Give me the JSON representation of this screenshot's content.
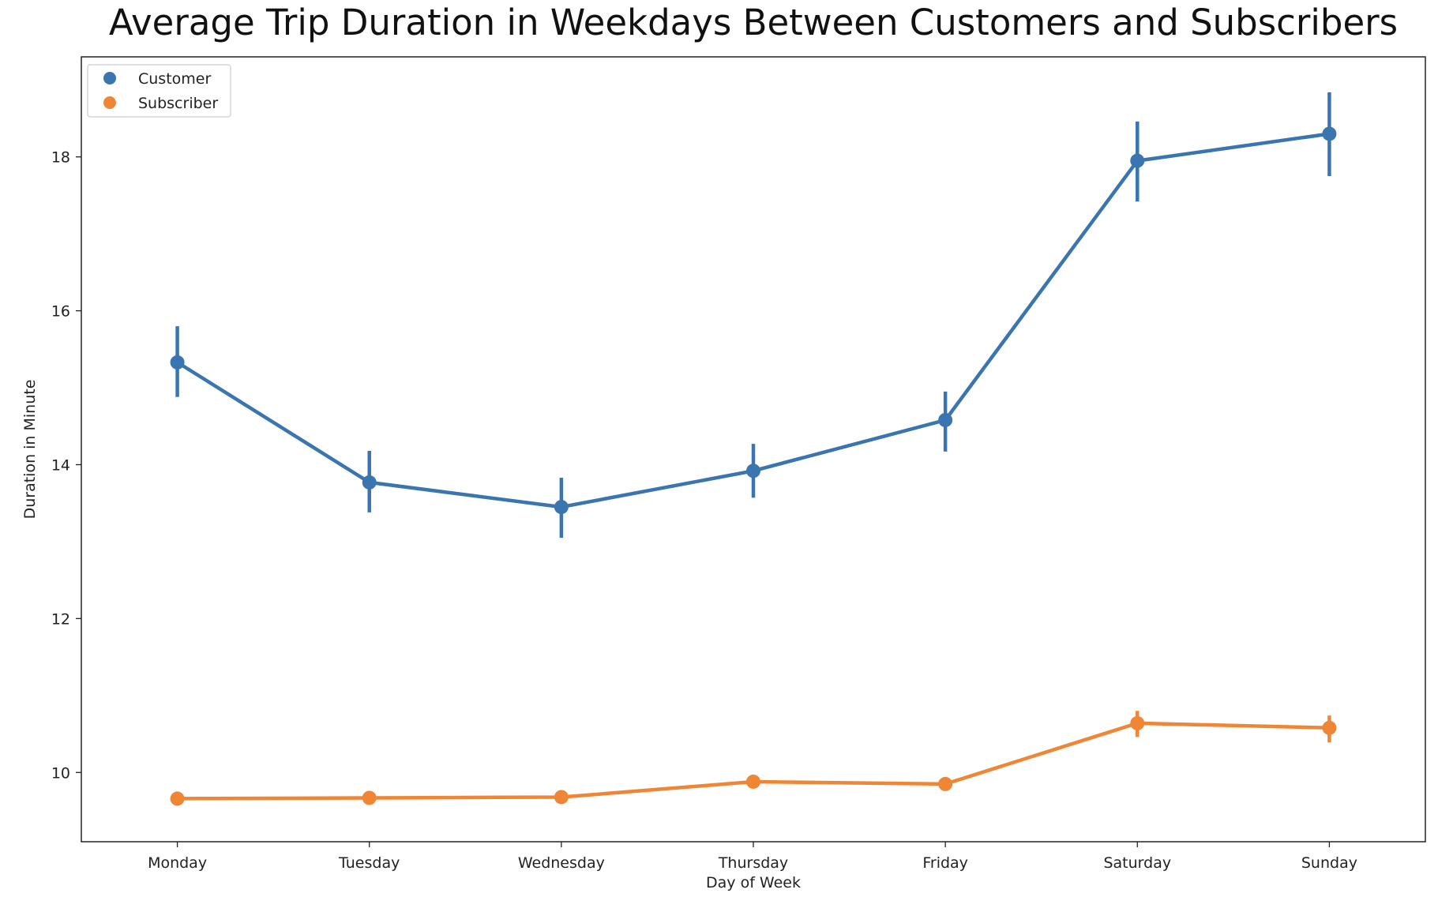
{
  "chart_data": {
    "type": "line",
    "title": "Average Trip Duration in Weekdays Between Customers and Subscribers",
    "xlabel": "Day of Week",
    "ylabel": "Duration in Minute",
    "categories": [
      "Monday",
      "Tuesday",
      "Wednesday",
      "Thursday",
      "Friday",
      "Saturday",
      "Sunday"
    ],
    "ylim": [
      9.1,
      19.3
    ],
    "yticks": [
      10,
      12,
      14,
      16,
      18
    ],
    "grid": false,
    "legend_position": "top-left",
    "series": [
      {
        "name": "Customer",
        "color": "#3a75b0",
        "values": [
          15.33,
          13.77,
          13.45,
          13.92,
          14.58,
          17.95,
          18.3
        ],
        "ci_low": [
          14.88,
          13.38,
          13.05,
          13.57,
          14.17,
          17.42,
          17.75
        ],
        "ci_high": [
          15.8,
          14.18,
          13.83,
          14.27,
          14.95,
          18.46,
          18.84
        ]
      },
      {
        "name": "Subscriber",
        "color": "#ef8636",
        "values": [
          9.66,
          9.67,
          9.68,
          9.88,
          9.85,
          10.64,
          10.58
        ],
        "ci_low": [
          9.57,
          9.6,
          9.62,
          9.81,
          9.77,
          10.46,
          10.39
        ],
        "ci_high": [
          9.75,
          9.74,
          9.74,
          9.95,
          9.93,
          10.8,
          10.74
        ]
      }
    ]
  }
}
